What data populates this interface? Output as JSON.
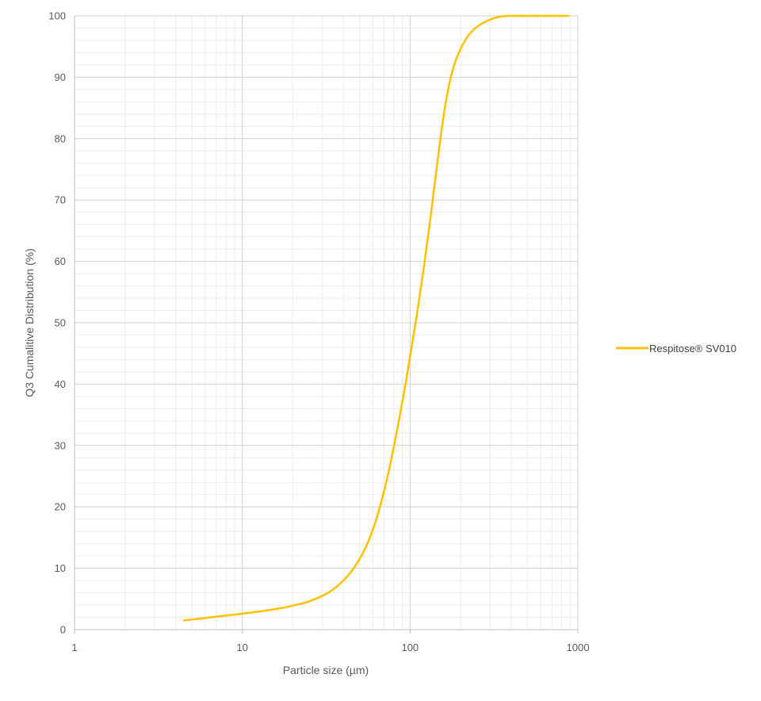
{
  "chart_data": {
    "type": "line",
    "title": "",
    "xlabel": "Particle size (µm)",
    "ylabel": "Q3  Cumalitive Distribution (%)",
    "x_scale": "log",
    "xlim": [
      1,
      1000
    ],
    "ylim": [
      0,
      100
    ],
    "x_ticks": [
      1,
      10,
      100,
      1000
    ],
    "x_tick_labels": [
      "1",
      "10",
      "100",
      "1000"
    ],
    "y_ticks": [
      0,
      10,
      20,
      30,
      40,
      50,
      60,
      70,
      80,
      90,
      100
    ],
    "y_tick_labels": [
      "0",
      "10",
      "20",
      "30",
      "40",
      "50",
      "60",
      "70",
      "80",
      "90",
      "100"
    ],
    "grid": true,
    "minor_grid": true,
    "legend_position": "right",
    "series": [
      {
        "name": "Respitose® SV010",
        "color": "#FFC000",
        "x": [
          4.5,
          6,
          8,
          10,
          13,
          17,
          20,
          25,
          30,
          35,
          40,
          45,
          50,
          55,
          60,
          65,
          70,
          75,
          80,
          85,
          90,
          95,
          100,
          110,
          120,
          130,
          140,
          150,
          160,
          170,
          180,
          190,
          200,
          220,
          250,
          300,
          350,
          400,
          450,
          500,
          600,
          700,
          800,
          880
        ],
        "y": [
          1.5,
          1.9,
          2.3,
          2.6,
          3.0,
          3.5,
          3.9,
          4.6,
          5.5,
          6.6,
          8.0,
          9.6,
          11.5,
          13.7,
          16.3,
          19.3,
          22.6,
          26.1,
          29.8,
          33.5,
          37.2,
          40.8,
          44.5,
          51.5,
          58.5,
          65.5,
          72.5,
          79.0,
          84.5,
          88.5,
          91.3,
          93.2,
          94.6,
          96.6,
          98.2,
          99.4,
          99.9,
          100,
          100,
          100,
          100,
          100,
          100,
          100
        ]
      }
    ]
  }
}
